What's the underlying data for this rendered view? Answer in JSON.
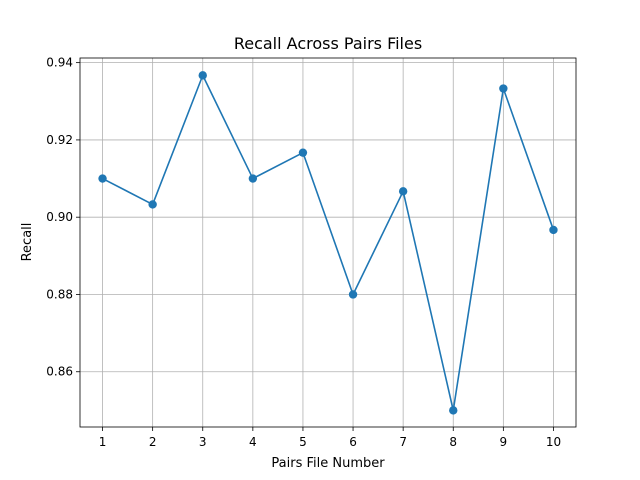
{
  "chart_data": {
    "type": "line",
    "title": "Recall Across Pairs Files",
    "xlabel": "Pairs File Number",
    "ylabel": "Recall",
    "x": [
      1,
      2,
      3,
      4,
      5,
      6,
      7,
      8,
      9,
      10
    ],
    "x_tick_labels": [
      "1",
      "2",
      "3",
      "4",
      "5",
      "6",
      "7",
      "8",
      "9",
      "10"
    ],
    "y_ticks": [
      0.86,
      0.88,
      0.9,
      0.92,
      0.94
    ],
    "y_tick_labels": [
      "0.86",
      "0.88",
      "0.90",
      "0.92",
      "0.94"
    ],
    "xlim": [
      0.55,
      10.45
    ],
    "ylim": [
      0.8457,
      0.9412
    ],
    "grid": true,
    "series": [
      {
        "values": [
          0.91,
          0.9033,
          0.9367,
          0.91,
          0.9167,
          0.88,
          0.9067,
          0.85,
          0.9333,
          0.8967
        ],
        "color": "#1f77b4",
        "marker": "circle"
      }
    ]
  }
}
